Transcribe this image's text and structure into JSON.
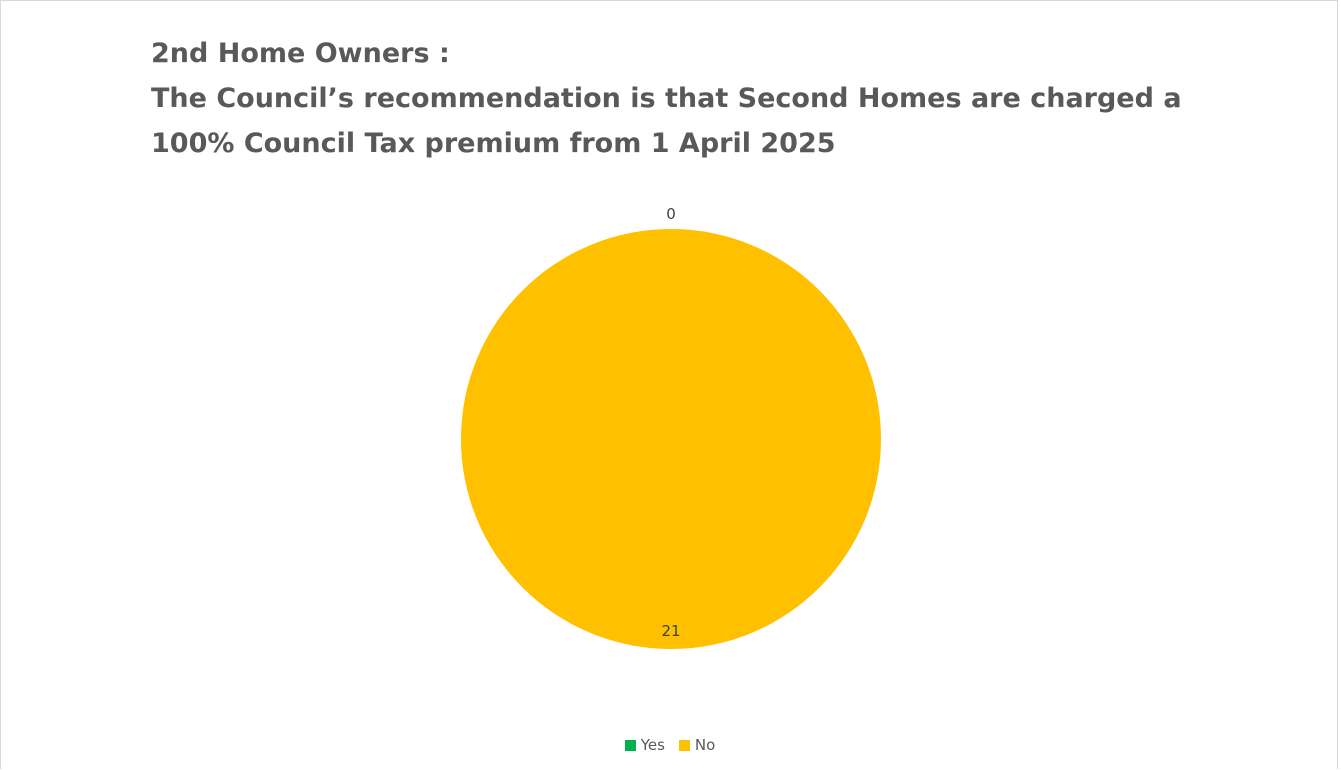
{
  "chart_data": {
    "type": "pie",
    "title_lines": [
      "2nd Home Owners :",
      "The Council’s recommendation is that Second Homes are charged a",
      "100% Council Tax premium from 1 April 2025"
    ],
    "categories": [
      "Yes",
      "No"
    ],
    "values": [
      0,
      21
    ],
    "colors": [
      "#00b050",
      "#ffc000"
    ],
    "data_labels": [
      "0",
      "21"
    ],
    "legend_position": "bottom"
  }
}
